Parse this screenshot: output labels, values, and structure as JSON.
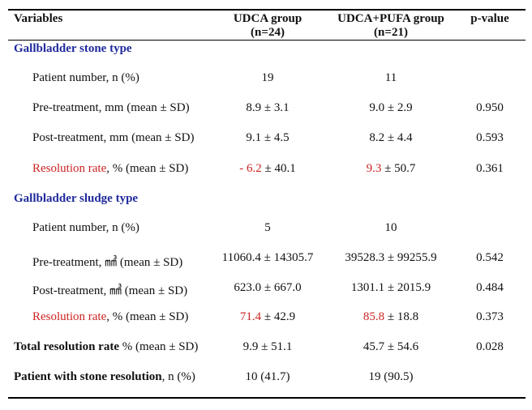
{
  "header": {
    "variables": "Variables",
    "udca_line1": "UDCA group",
    "udca_line2": "(n=24)",
    "pufa_line1": "UDCA+PUFA group",
    "pufa_line2": "(n=21)",
    "pvalue": "p-value"
  },
  "stone": {
    "title": "Gallbladder stone type",
    "patient_label": "Patient number, n (%)",
    "patient_udca": "19",
    "patient_pufa": "11",
    "pre_label": "Pre-treatment, mm (mean ± SD)",
    "pre_udca": "8.9 ± 3.1",
    "pre_pufa": "9.0 ± 2.9",
    "pre_p": "0.950",
    "post_label": "Post-treatment, mm (mean ± SD)",
    "post_udca": "9.1 ± 4.5",
    "post_pufa": "8.2 ± 4.4",
    "post_p": "0.593",
    "res_label_red": "Resolution rate",
    "res_label_rest": ", % (mean ± SD)",
    "res_udca_red": "- 6.2",
    "res_udca_rest": " ± 40.1",
    "res_pufa_red": "9.3",
    "res_pufa_rest": " ± 50.7",
    "res_p": "0.361"
  },
  "sludge": {
    "title": "Gallbladder sludge type",
    "patient_label": "Patient number, n (%)",
    "patient_udca": "5",
    "patient_pufa": "10",
    "pre_label": "Pre-treatment, ㎣ (mean ± SD)",
    "pre_udca": "11060.4 ± 14305.7",
    "pre_pufa": "39528.3 ± 99255.9",
    "pre_p": "0.542",
    "post_label": "Post-treatment, ㎣ (mean ± SD)",
    "post_udca": "623.0 ± 667.0",
    "post_pufa": "1301.1 ± 2015.9",
    "post_p": "0.484",
    "res_label_red": "Resolution rate",
    "res_label_rest": ", % (mean ± SD)",
    "res_udca_red": "71.4",
    "res_udca_rest": " ± 42.9",
    "res_pufa_red": "85.8",
    "res_pufa_rest": " ± 18.8",
    "res_p": "0.373"
  },
  "total": {
    "label_bold": "Total resolution rate",
    "label_rest": " % (mean ± SD)",
    "udca": "9.9 ± 51.1",
    "pufa": "45.7 ± 54.6",
    "p": "0.028"
  },
  "stone_resolution": {
    "label_bold": "Patient with stone resolution",
    "label_rest": ", n (%)",
    "udca": "10 (41.7)",
    "pufa": "19 (90.5)"
  }
}
